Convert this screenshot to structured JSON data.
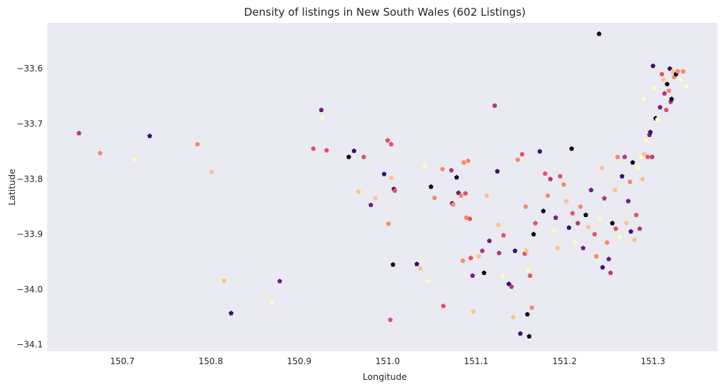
{
  "chart_data": {
    "type": "scatter",
    "title": "Density of listings in New South Wales (602 Listings)",
    "xlabel": "Longitude",
    "ylabel": "Latitude",
    "xlim": [
      150.615,
      151.373
    ],
    "ylim": [
      -34.112,
      -33.517
    ],
    "xticks": [
      150.7,
      150.8,
      150.9,
      151.0,
      151.1,
      151.2,
      151.3
    ],
    "xtick_labels": [
      "150.7",
      "150.8",
      "150.9",
      "151.0",
      "151.1",
      "151.2",
      "151.3"
    ],
    "yticks": [
      -33.6,
      -33.7,
      -33.8,
      -33.9,
      -34.0,
      -34.1
    ],
    "ytick_labels": [
      "−33.6",
      "−33.7",
      "−33.8",
      "−33.9",
      "−34.0",
      "−34.1"
    ],
    "grid": false,
    "background": "#eaeaf2",
    "marker": "pentagon",
    "palette": [
      "#0b0725",
      "#3b0f70",
      "#721f81",
      "#b5367a",
      "#e55064",
      "#fb8761",
      "#fec287",
      "#fcfdbf"
    ],
    "points": [
      [
        150.651,
        -33.717,
        3
      ],
      [
        150.675,
        -33.753,
        5
      ],
      [
        150.714,
        -33.764,
        7
      ],
      [
        150.731,
        -33.722,
        1
      ],
      [
        150.785,
        -33.737,
        5
      ],
      [
        150.801,
        -33.787,
        6
      ],
      [
        150.815,
        -33.984,
        6
      ],
      [
        150.823,
        -34.043,
        1
      ],
      [
        150.869,
        -34.024,
        7
      ],
      [
        150.878,
        -33.985,
        2
      ],
      [
        150.916,
        -33.745,
        4
      ],
      [
        150.925,
        -33.675,
        2
      ],
      [
        150.926,
        -33.688,
        7
      ],
      [
        150.931,
        -33.748,
        4
      ],
      [
        150.956,
        -33.76,
        0
      ],
      [
        150.962,
        -33.749,
        1
      ],
      [
        150.967,
        -33.823,
        6
      ],
      [
        150.973,
        -33.76,
        4
      ],
      [
        150.981,
        -33.847,
        2
      ],
      [
        150.986,
        -33.835,
        6
      ],
      [
        150.996,
        -33.791,
        1
      ],
      [
        151.0,
        -33.73,
        4
      ],
      [
        151.001,
        -33.881,
        5
      ],
      [
        151.004,
        -33.737,
        4
      ],
      [
        151.004,
        -33.798,
        6
      ],
      [
        151.003,
        -34.055,
        4
      ],
      [
        151.006,
        -33.955,
        0
      ],
      [
        151.007,
        -33.818,
        1
      ],
      [
        151.008,
        -33.821,
        4
      ],
      [
        151.042,
        -33.776,
        7
      ],
      [
        151.045,
        -33.985,
        7
      ],
      [
        151.049,
        -33.814,
        0
      ],
      [
        151.053,
        -33.834,
        5
      ],
      [
        151.037,
        -33.962,
        6
      ],
      [
        151.033,
        -33.954,
        1
      ],
      [
        151.062,
        -33.782,
        5
      ],
      [
        151.063,
        -34.03,
        4
      ],
      [
        151.072,
        -33.784,
        3
      ],
      [
        151.073,
        -33.844,
        1
      ],
      [
        151.074,
        -33.846,
        5
      ],
      [
        151.078,
        -33.797,
        0
      ],
      [
        151.08,
        -33.825,
        2
      ],
      [
        151.083,
        -33.83,
        5
      ],
      [
        151.085,
        -33.948,
        5
      ],
      [
        151.086,
        -33.77,
        5
      ],
      [
        151.088,
        -33.826,
        4
      ],
      [
        151.089,
        -33.87,
        5
      ],
      [
        151.091,
        -33.767,
        5
      ],
      [
        151.093,
        -33.872,
        4
      ],
      [
        151.094,
        -33.943,
        4
      ],
      [
        151.096,
        -33.975,
        2
      ],
      [
        151.097,
        -34.04,
        6
      ],
      [
        151.103,
        -33.94,
        6
      ],
      [
        151.107,
        -33.93,
        3
      ],
      [
        151.109,
        -33.97,
        0
      ],
      [
        151.112,
        -33.83,
        6
      ],
      [
        151.115,
        -33.912,
        2
      ],
      [
        151.121,
        -33.667,
        3
      ],
      [
        151.124,
        -33.786,
        1
      ],
      [
        151.125,
        -33.883,
        6
      ],
      [
        151.126,
        -33.934,
        3
      ],
      [
        151.13,
        -33.975,
        7
      ],
      [
        151.131,
        -33.902,
        4
      ],
      [
        151.137,
        -33.99,
        1
      ],
      [
        151.14,
        -33.995,
        3
      ],
      [
        151.142,
        -34.05,
        6
      ],
      [
        151.144,
        -33.93,
        1
      ],
      [
        151.147,
        -33.765,
        5
      ],
      [
        151.15,
        -34.08,
        1
      ],
      [
        151.152,
        -33.755,
        4
      ],
      [
        151.155,
        -33.935,
        4
      ],
      [
        151.156,
        -33.85,
        5
      ],
      [
        151.157,
        -33.93,
        6
      ],
      [
        151.158,
        -34.045,
        0
      ],
      [
        151.159,
        -33.965,
        7
      ],
      [
        151.16,
        -34.085,
        0
      ],
      [
        151.161,
        -33.975,
        4
      ],
      [
        151.163,
        -34.033,
        5
      ],
      [
        151.165,
        -33.9,
        0
      ],
      [
        151.167,
        -33.88,
        4
      ],
      [
        151.172,
        -33.75,
        1
      ],
      [
        151.176,
        -33.858,
        0
      ],
      [
        151.178,
        -33.79,
        4
      ],
      [
        151.181,
        -33.83,
        5
      ],
      [
        151.184,
        -33.8,
        3
      ],
      [
        151.188,
        -33.893,
        7
      ],
      [
        151.19,
        -33.87,
        2
      ],
      [
        151.192,
        -33.925,
        6
      ],
      [
        151.195,
        -33.795,
        4
      ],
      [
        151.199,
        -33.81,
        5
      ],
      [
        151.202,
        -33.84,
        6
      ],
      [
        151.205,
        -33.888,
        1
      ],
      [
        151.208,
        -33.745,
        0
      ],
      [
        151.209,
        -33.862,
        4
      ],
      [
        151.212,
        -33.915,
        7
      ],
      [
        151.215,
        -33.88,
        3
      ],
      [
        151.218,
        -33.85,
        5
      ],
      [
        151.221,
        -33.925,
        2
      ],
      [
        151.224,
        -33.865,
        0
      ],
      [
        151.227,
        -33.887,
        6
      ],
      [
        151.23,
        -33.82,
        2
      ],
      [
        151.234,
        -33.9,
        4
      ],
      [
        151.236,
        -33.94,
        5
      ],
      [
        151.239,
        -33.537,
        0
      ],
      [
        151.24,
        -33.872,
        7
      ],
      [
        151.242,
        -33.78,
        6
      ],
      [
        151.243,
        -33.96,
        1
      ],
      [
        151.245,
        -33.835,
        3
      ],
      [
        151.248,
        -33.915,
        5
      ],
      [
        151.25,
        -33.945,
        2
      ],
      [
        151.252,
        -33.97,
        3
      ],
      [
        151.254,
        -33.88,
        0
      ],
      [
        151.257,
        -33.82,
        6
      ],
      [
        151.258,
        -33.89,
        4
      ],
      [
        151.26,
        -33.76,
        5
      ],
      [
        151.262,
        -33.905,
        7
      ],
      [
        151.265,
        -33.795,
        1
      ],
      [
        151.268,
        -33.76,
        3
      ],
      [
        151.27,
        -33.88,
        6
      ],
      [
        151.272,
        -33.84,
        2
      ],
      [
        151.274,
        -33.805,
        5
      ],
      [
        151.275,
        -33.895,
        1
      ],
      [
        151.277,
        -33.77,
        0
      ],
      [
        151.279,
        -33.91,
        6
      ],
      [
        151.281,
        -33.865,
        4
      ],
      [
        151.283,
        -33.78,
        7
      ],
      [
        151.285,
        -33.89,
        3
      ],
      [
        151.286,
        -33.76,
        7
      ],
      [
        151.288,
        -33.8,
        6
      ],
      [
        151.289,
        -33.655,
        7
      ],
      [
        151.29,
        -33.755,
        6
      ],
      [
        151.292,
        -33.73,
        7
      ],
      [
        151.294,
        -33.76,
        4
      ],
      [
        151.296,
        -33.72,
        2
      ],
      [
        151.297,
        -33.715,
        1
      ],
      [
        151.299,
        -33.76,
        3
      ],
      [
        151.3,
        -33.595,
        1
      ],
      [
        151.302,
        -33.635,
        7
      ],
      [
        151.303,
        -33.69,
        0
      ],
      [
        151.305,
        -33.692,
        7
      ],
      [
        151.308,
        -33.67,
        2
      ],
      [
        151.31,
        -33.61,
        4
      ],
      [
        151.312,
        -33.62,
        6
      ],
      [
        151.313,
        -33.645,
        3
      ],
      [
        151.315,
        -33.675,
        4
      ],
      [
        151.316,
        -33.628,
        0
      ],
      [
        151.318,
        -33.64,
        5
      ],
      [
        151.319,
        -33.6,
        1
      ],
      [
        151.32,
        -33.66,
        3
      ],
      [
        151.321,
        -33.655,
        0
      ],
      [
        151.322,
        -33.605,
        6
      ],
      [
        151.324,
        -33.615,
        5
      ],
      [
        151.326,
        -33.61,
        0
      ],
      [
        151.328,
        -33.605,
        5
      ],
      [
        151.331,
        -33.62,
        7
      ],
      [
        151.334,
        -33.605,
        5
      ],
      [
        151.338,
        -33.632,
        7
      ]
    ]
  }
}
